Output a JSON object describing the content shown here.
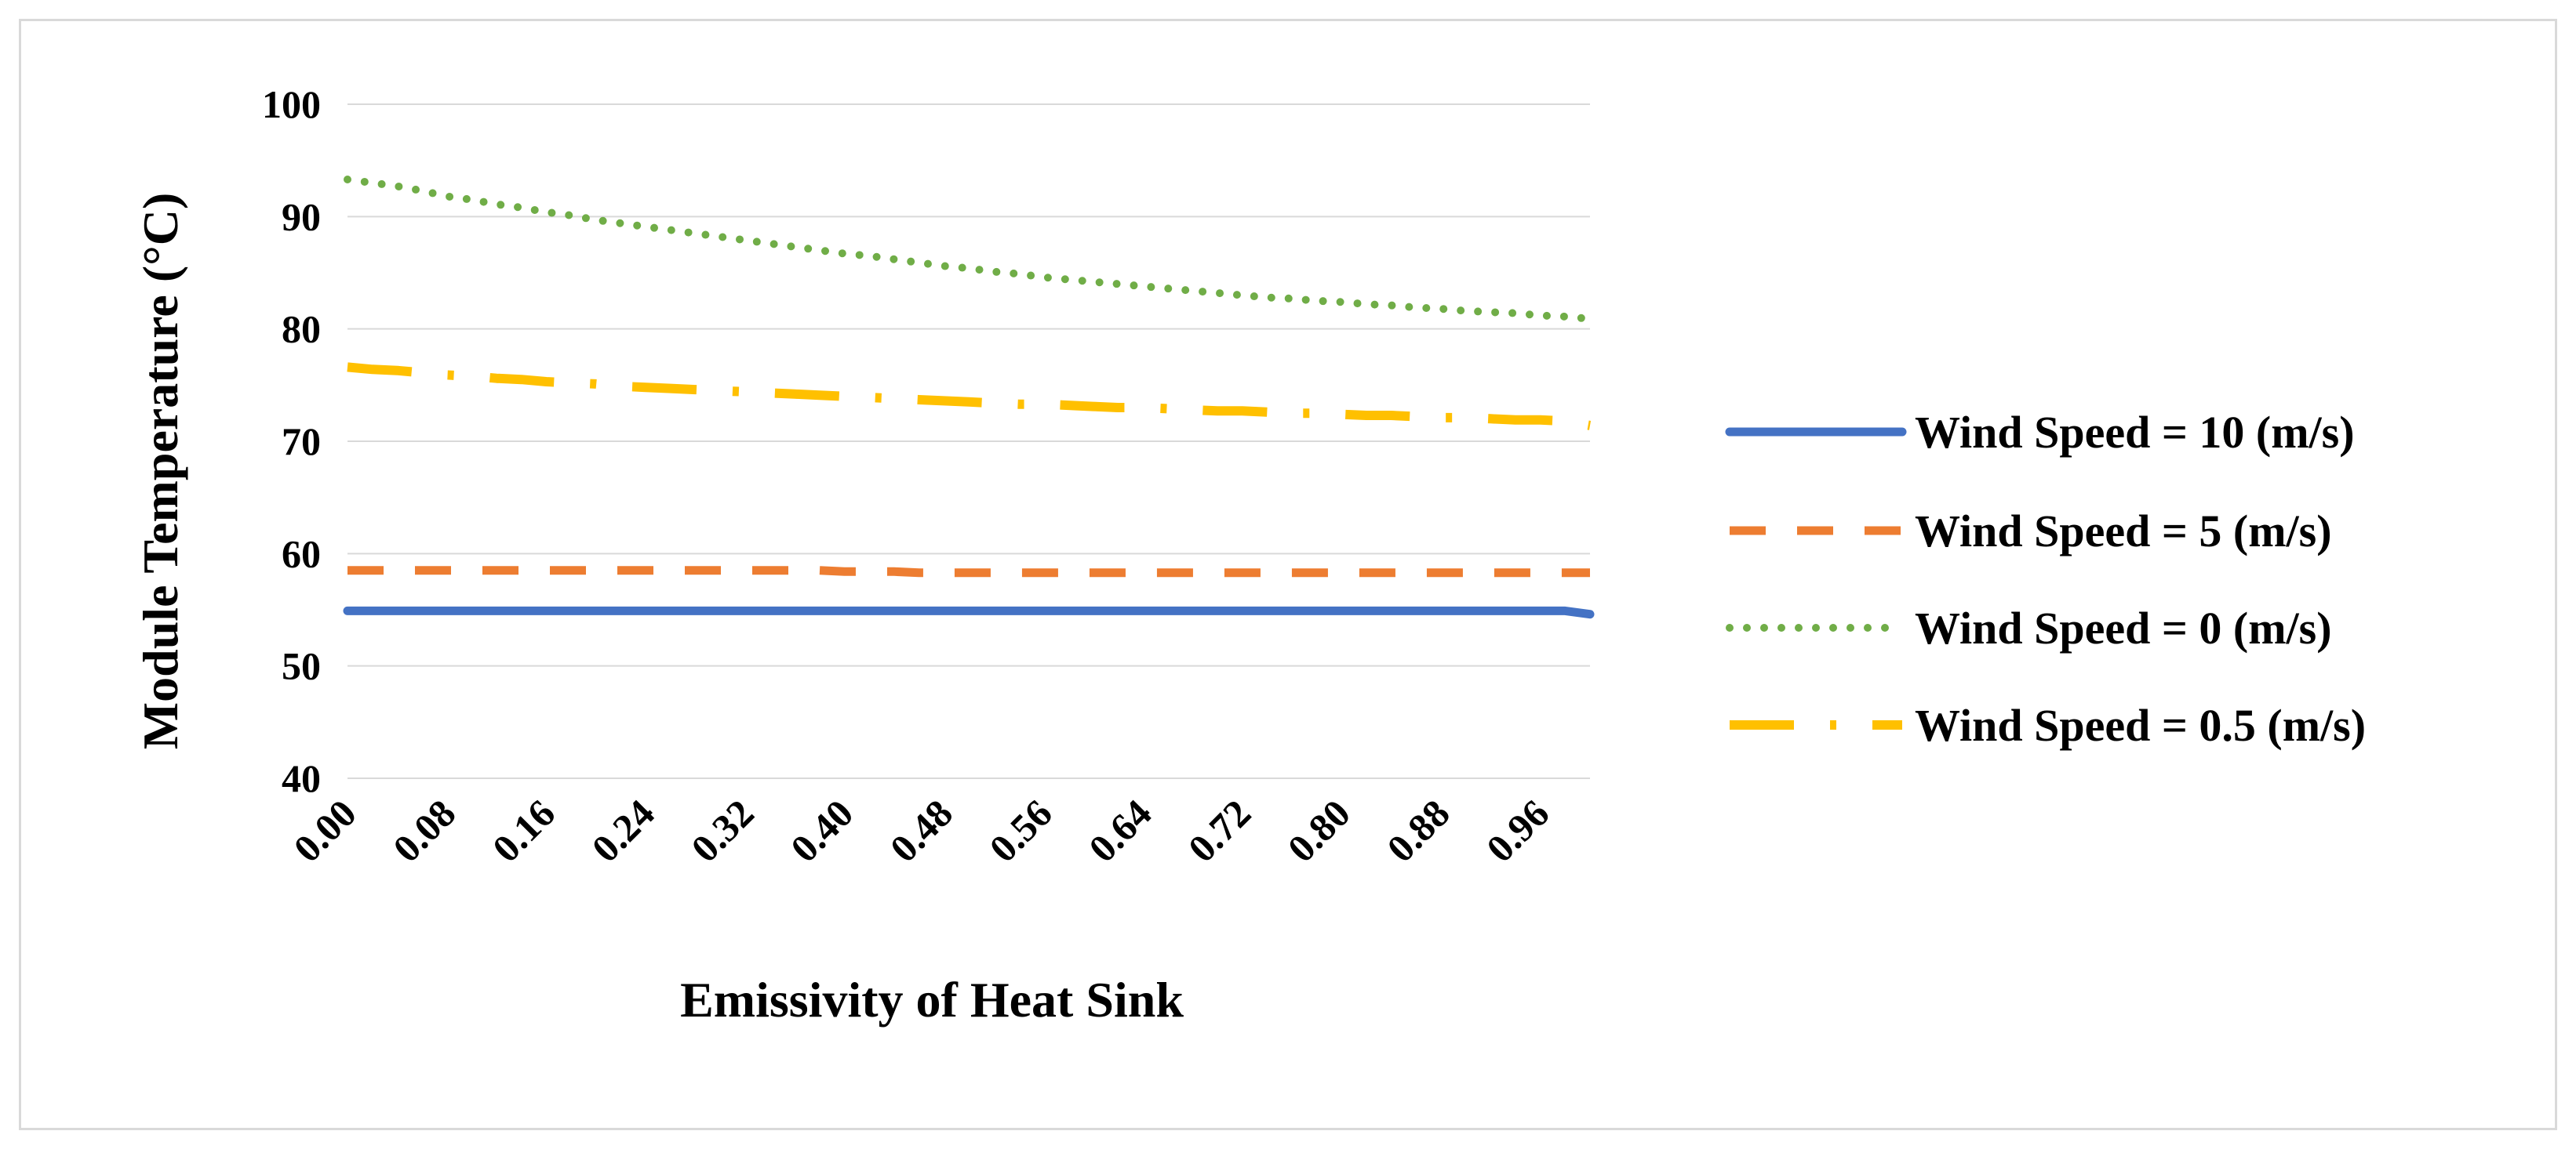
{
  "chart_data": {
    "type": "line",
    "title": "",
    "xlabel": "Emissivity of Heat Sink",
    "ylabel": "Module Temperature (°C)",
    "ylim": [
      40,
      100
    ],
    "yticks": [
      40,
      50,
      60,
      70,
      80,
      90,
      100
    ],
    "grid": true,
    "legend_position": "right",
    "x": [
      0.0,
      0.02,
      0.04,
      0.06,
      0.08,
      0.1,
      0.12,
      0.14,
      0.16,
      0.18,
      0.2,
      0.22,
      0.24,
      0.26,
      0.28,
      0.3,
      0.32,
      0.34,
      0.36,
      0.38,
      0.4,
      0.42,
      0.44,
      0.46,
      0.48,
      0.5,
      0.52,
      0.54,
      0.56,
      0.58,
      0.6,
      0.62,
      0.64,
      0.66,
      0.68,
      0.7,
      0.72,
      0.74,
      0.76,
      0.78,
      0.8,
      0.82,
      0.84,
      0.86,
      0.88,
      0.9,
      0.92,
      0.94,
      0.96,
      0.98,
      1.0
    ],
    "xtick_labels": [
      "0.00",
      "0.08",
      "0.16",
      "0.24",
      "0.32",
      "0.40",
      "0.48",
      "0.56",
      "0.64",
      "0.72",
      "0.80",
      "0.88",
      "0.96"
    ],
    "series": [
      {
        "name": "Wind Speed = 10 (m/s)",
        "color": "#4472c4",
        "dash": "solid",
        "values": [
          54.9,
          54.9,
          54.9,
          54.9,
          54.9,
          54.9,
          54.9,
          54.9,
          54.9,
          54.9,
          54.9,
          54.9,
          54.9,
          54.9,
          54.9,
          54.9,
          54.9,
          54.9,
          54.9,
          54.9,
          54.9,
          54.9,
          54.9,
          54.9,
          54.9,
          54.9,
          54.9,
          54.9,
          54.9,
          54.9,
          54.9,
          54.9,
          54.9,
          54.9,
          54.9,
          54.9,
          54.9,
          54.9,
          54.9,
          54.9,
          54.9,
          54.9,
          54.9,
          54.9,
          54.9,
          54.9,
          54.9,
          54.9,
          54.9,
          54.9,
          54.6
        ]
      },
      {
        "name": "Wind Speed = 5 (m/s)",
        "color": "#ed7d31",
        "dash": "dash",
        "values": [
          58.5,
          58.5,
          58.5,
          58.5,
          58.5,
          58.5,
          58.5,
          58.5,
          58.5,
          58.5,
          58.5,
          58.5,
          58.5,
          58.5,
          58.5,
          58.5,
          58.5,
          58.5,
          58.5,
          58.5,
          58.4,
          58.4,
          58.4,
          58.3,
          58.3,
          58.3,
          58.3,
          58.3,
          58.3,
          58.3,
          58.3,
          58.3,
          58.3,
          58.3,
          58.3,
          58.3,
          58.3,
          58.3,
          58.3,
          58.3,
          58.3,
          58.3,
          58.3,
          58.3,
          58.3,
          58.3,
          58.3,
          58.3,
          58.3,
          58.3,
          58.3
        ]
      },
      {
        "name": "Wind Speed = 0 (m/s)",
        "color": "#70ad47",
        "dash": "dot",
        "values": [
          93.3,
          93.0,
          92.7,
          92.3,
          91.8,
          91.5,
          91.1,
          90.8,
          90.4,
          90.1,
          89.7,
          89.4,
          89.1,
          88.8,
          88.5,
          88.2,
          87.9,
          87.6,
          87.3,
          87.0,
          86.7,
          86.5,
          86.2,
          85.9,
          85.6,
          85.4,
          85.1,
          84.9,
          84.6,
          84.4,
          84.2,
          84.0,
          83.8,
          83.6,
          83.4,
          83.2,
          83.0,
          82.8,
          82.7,
          82.5,
          82.4,
          82.2,
          82.1,
          81.9,
          81.8,
          81.6,
          81.5,
          81.4,
          81.2,
          81.1,
          80.9
        ]
      },
      {
        "name": "Wind Speed = 0.5 (m/s)",
        "color": "#ffc000",
        "dash": "longdashdot",
        "values": [
          76.6,
          76.4,
          76.3,
          76.1,
          75.9,
          75.8,
          75.6,
          75.5,
          75.3,
          75.2,
          75.1,
          74.9,
          74.8,
          74.7,
          74.6,
          74.5,
          74.4,
          74.3,
          74.2,
          74.1,
          74.0,
          73.9,
          73.8,
          73.7,
          73.6,
          73.5,
          73.4,
          73.3,
          73.3,
          73.2,
          73.1,
          73.0,
          73.0,
          72.9,
          72.8,
          72.7,
          72.7,
          72.6,
          72.5,
          72.5,
          72.4,
          72.3,
          72.3,
          72.2,
          72.1,
          72.1,
          72.0,
          71.9,
          71.9,
          71.8,
          71.4
        ]
      }
    ]
  }
}
